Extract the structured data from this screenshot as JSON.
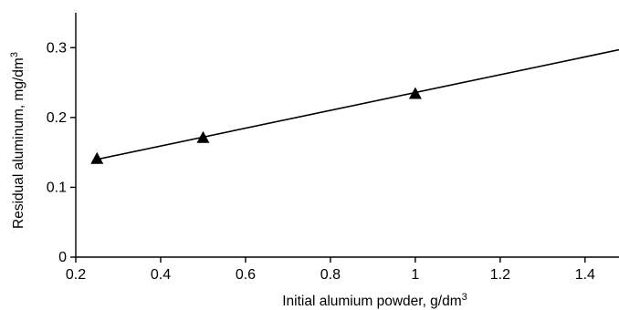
{
  "chart_data": {
    "type": "scatter",
    "title": "",
    "xlabel": {
      "text": "Initial alumium powder, g/dm",
      "sup": "3"
    },
    "ylabel": {
      "text": "Residual aluminum, mg/dm",
      "sup": "3"
    },
    "xlim": [
      0.2,
      1.48
    ],
    "ylim": [
      0,
      0.35
    ],
    "x_ticks": [
      0.2,
      0.4,
      0.6,
      0.8,
      1.0,
      1.2,
      1.4
    ],
    "x_tick_labels": [
      "0.2",
      "0.4",
      "0.6",
      "0.8",
      "1",
      "1.2",
      "1.4"
    ],
    "y_ticks": [
      0,
      0.1,
      0.2,
      0.3
    ],
    "y_tick_labels": [
      "0",
      "0.1",
      "0.2",
      "0.3"
    ],
    "grid": false,
    "series": [
      {
        "marker": "triangle",
        "color": "#000000",
        "x": [
          0.25,
          0.5,
          1.0
        ],
        "y": [
          0.14,
          0.17,
          0.233
        ]
      }
    ],
    "fit_line": {
      "color": "#000000",
      "x": [
        0.25,
        1.48
      ],
      "y": [
        0.14,
        0.297
      ]
    }
  }
}
